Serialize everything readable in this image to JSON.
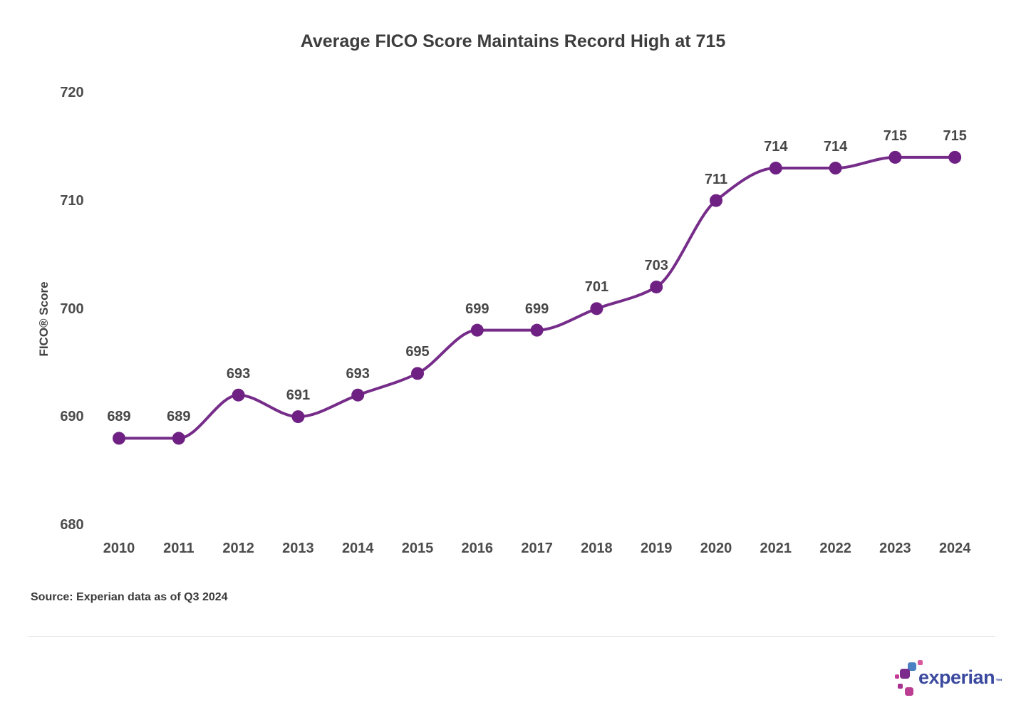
{
  "chart_data": {
    "type": "line",
    "title": "Average FICO Score Maintains Record High at 715",
    "xlabel": "",
    "ylabel": "FICO® Score",
    "categories": [
      "2010",
      "2011",
      "2012",
      "2013",
      "2014",
      "2015",
      "2016",
      "2017",
      "2018",
      "2019",
      "2020",
      "2021",
      "2022",
      "2023",
      "2024"
    ],
    "values": [
      689,
      689,
      693,
      691,
      693,
      695,
      699,
      699,
      701,
      703,
      711,
      714,
      714,
      715,
      715
    ],
    "data_labels": [
      "689",
      "689",
      "693",
      "691",
      "693",
      "695",
      "699",
      "699",
      "701",
      "703",
      "711",
      "714",
      "714",
      "715",
      "715"
    ],
    "ylim": [
      680,
      720
    ],
    "yticks": [
      "720",
      "710",
      "700",
      "690",
      "680"
    ],
    "ytick_values": [
      720,
      710,
      700,
      690,
      680
    ],
    "grid": false,
    "legend": null,
    "line_color": "#762d8a",
    "marker_color": "#6e2183"
  },
  "source_note": "Source: Experian data as of Q3 2024",
  "logo": {
    "wordmark": "experian",
    "tm": "™",
    "wordmark_color": "#3b4a9e",
    "mark_squares": [
      {
        "name": "blue-square",
        "color": "#4b80c2"
      },
      {
        "name": "pink-small-square",
        "color": "#d8579f"
      },
      {
        "name": "purple-square",
        "color": "#7b2b8b"
      },
      {
        "name": "magenta-tiny-square",
        "color": "#c23a93"
      },
      {
        "name": "plum-small-square",
        "color": "#a63390"
      },
      {
        "name": "magenta-square",
        "color": "#bc3e92"
      }
    ]
  }
}
